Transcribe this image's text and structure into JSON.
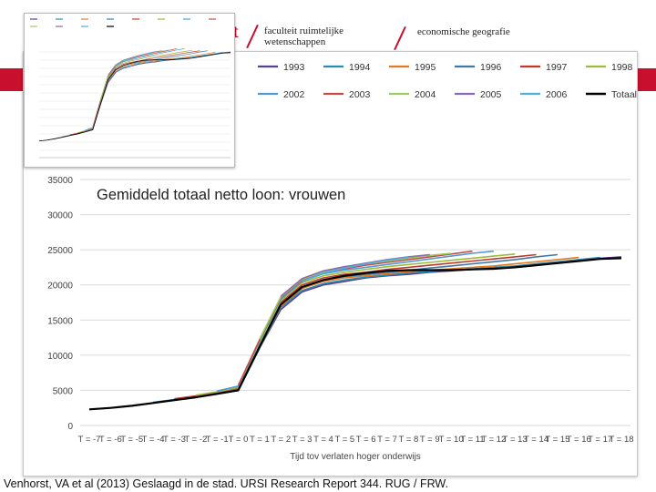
{
  "header": {
    "faculty_line1": "faculteit ruimtelijke",
    "faculty_line2": "wetenschappen",
    "department": "economische geografie",
    "logo_fragment": "t"
  },
  "source_text": "Venhorst, VA et al (2013) Geslaagd in de stad. URSI Research Report 344. RUG / FRW.",
  "colors": {
    "brand_red": "#c8102e"
  },
  "chart_data": {
    "type": "line",
    "title": "Gemiddeld totaal netto loon: vrouwen",
    "xlabel": "Tijd tov verlaten hoger onderwijs",
    "ylabel": "",
    "ylim": [
      0,
      35000
    ],
    "yticks": [
      0,
      5000,
      10000,
      15000,
      20000,
      25000,
      30000,
      35000
    ],
    "grid": true,
    "legend_position": "top",
    "x": [
      "T = -7",
      "T = -6",
      "T = -5",
      "T = -4",
      "T = -3",
      "T = -2",
      "T = -1",
      "T = 0",
      "T = 1",
      "T = 2",
      "T = 3",
      "T = 4",
      "T = 5",
      "T = 6",
      "T = 7",
      "T = 8",
      "T = 9",
      "T = 10",
      "T = 11",
      "T = 12",
      "T = 13",
      "T = 14",
      "T = 15",
      "T = 16",
      "T = 17",
      "T = 18"
    ],
    "series": [
      {
        "name": "1993",
        "color": "#5b3f8c",
        "values": [
          2300,
          2500,
          2800,
          3200,
          3600,
          4000,
          4500,
          5000,
          11000,
          16500,
          19000,
          20000,
          20500,
          21000,
          21300,
          21500,
          21800,
          22000,
          22200,
          22400,
          22600,
          22900,
          23200,
          23500,
          23800,
          24000
        ]
      },
      {
        "name": "1994",
        "color": "#2a8cb3",
        "values": [
          null,
          2500,
          2800,
          3200,
          3600,
          4000,
          4500,
          5000,
          11000,
          16800,
          19200,
          20200,
          20700,
          21100,
          21400,
          21700,
          21900,
          22100,
          22300,
          22500,
          22700,
          23000,
          23300,
          23600,
          23900,
          null
        ]
      },
      {
        "name": "1995",
        "color": "#e27b1f",
        "values": [
          null,
          null,
          2800,
          3200,
          3600,
          4000,
          4500,
          5200,
          11200,
          17000,
          19500,
          20500,
          21000,
          21300,
          21600,
          21900,
          22100,
          22300,
          22500,
          22700,
          23000,
          23300,
          23600,
          23900,
          null,
          null
        ]
      },
      {
        "name": "1996",
        "color": "#3d7aa8",
        "values": [
          null,
          null,
          null,
          3300,
          3700,
          4100,
          4600,
          5200,
          11300,
          17200,
          19700,
          20700,
          21200,
          21500,
          21800,
          22100,
          22400,
          22700,
          23000,
          23300,
          23600,
          24000,
          24300,
          null,
          null,
          null
        ]
      },
      {
        "name": "1997",
        "color": "#c0392b",
        "values": [
          null,
          null,
          null,
          null,
          3800,
          4200,
          4700,
          5300,
          11500,
          17500,
          20000,
          21000,
          21500,
          21800,
          22200,
          22500,
          22800,
          23100,
          23400,
          23700,
          24000,
          24300,
          null,
          null,
          null,
          null
        ]
      },
      {
        "name": "1998",
        "color": "#9bbb3a",
        "values": [
          null,
          null,
          null,
          null,
          null,
          4300,
          4800,
          5400,
          11700,
          17800,
          20300,
          21300,
          21800,
          22200,
          22600,
          22900,
          23200,
          23500,
          23800,
          24100,
          24400,
          null,
          null,
          null,
          null,
          null
        ]
      },
      {
        "name": "2002",
        "color": "#4e9ad8",
        "values": [
          null,
          null,
          null,
          null,
          null,
          null,
          4900,
          5600,
          12000,
          18000,
          20500,
          21600,
          22100,
          22500,
          22900,
          23300,
          23700,
          24100,
          24500,
          24800,
          null,
          null,
          null,
          null,
          null,
          null
        ]
      },
      {
        "name": "2003",
        "color": "#c94b45",
        "values": [
          null,
          null,
          null,
          null,
          null,
          null,
          null,
          5700,
          12200,
          18200,
          20700,
          21800,
          22300,
          22800,
          23200,
          23600,
          24000,
          24400,
          24800,
          null,
          null,
          null,
          null,
          null,
          null,
          null
        ]
      },
      {
        "name": "2004",
        "color": "#9ccc5a",
        "values": [
          null,
          null,
          null,
          null,
          null,
          null,
          null,
          null,
          12300,
          18300,
          20800,
          21900,
          22500,
          23000,
          23400,
          23800,
          24200,
          24500,
          null,
          null,
          null,
          null,
          null,
          null,
          null,
          null
        ]
      },
      {
        "name": "2005",
        "color": "#8a6bb1",
        "values": [
          null,
          null,
          null,
          null,
          null,
          null,
          null,
          null,
          null,
          18400,
          20900,
          22000,
          22600,
          23100,
          23600,
          24000,
          24300,
          null,
          null,
          null,
          null,
          null,
          null,
          null,
          null,
          null
        ]
      },
      {
        "name": "2006",
        "color": "#4fb0d8",
        "values": [
          null,
          null,
          null,
          null,
          null,
          null,
          null,
          null,
          null,
          null,
          20500,
          21700,
          22400,
          23000,
          23500,
          23900,
          null,
          null,
          null,
          null,
          null,
          null,
          null,
          null,
          null,
          null
        ]
      },
      {
        "name": "Totaal",
        "color": "#000000",
        "values": [
          2300,
          2500,
          2800,
          3200,
          3600,
          4000,
          4500,
          5000,
          11200,
          17200,
          19700,
          20700,
          21300,
          21700,
          22000,
          22100,
          22100,
          22100,
          22200,
          22300,
          22500,
          22800,
          23100,
          23400,
          23700,
          23800
        ]
      }
    ]
  },
  "thumbnail_chart": {
    "type": "line",
    "ylim": [
      0,
      24000
    ],
    "yticks": [
      0,
      2000,
      4000,
      6000,
      8000,
      10000,
      12000,
      14000,
      16000,
      18000,
      20000,
      22000,
      24000
    ],
    "x_count": 26,
    "series_count": 12
  }
}
